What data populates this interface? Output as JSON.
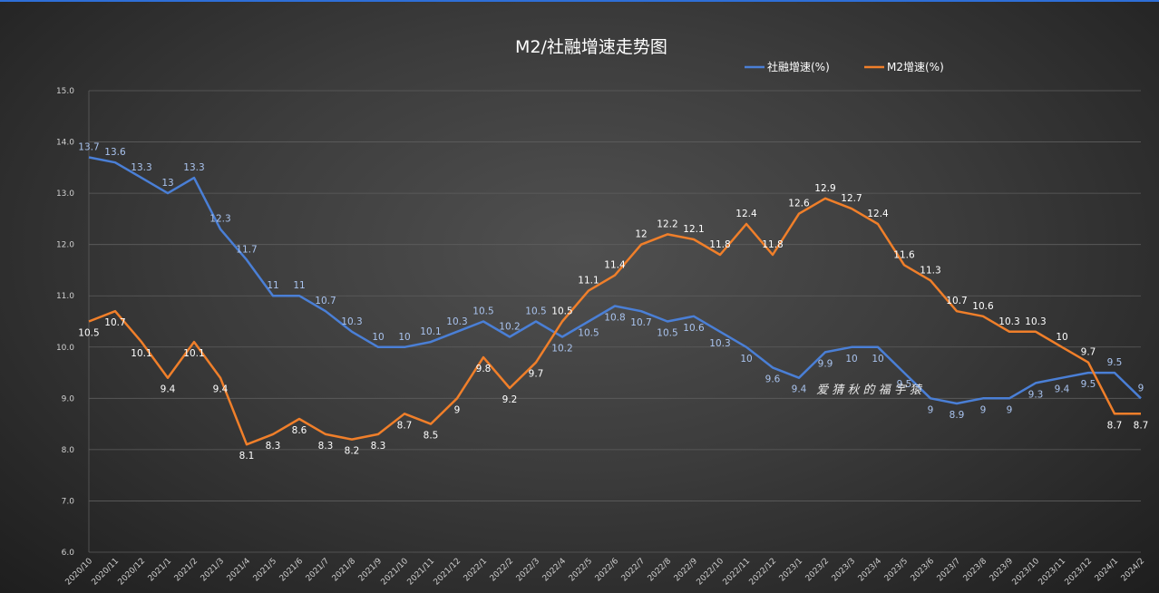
{
  "chart_data": {
    "type": "line",
    "title": "M2/社融增速走势图",
    "legend_position": "top-right",
    "grid": true,
    "ylim": [
      6.0,
      15.0
    ],
    "y_ticks": [
      "15.0",
      "14.0",
      "13.0",
      "12.0",
      "11.0",
      "10.0",
      "9.0",
      "8.0",
      "7.0",
      "6.0"
    ],
    "x": [
      "2020/10",
      "2020/11",
      "2020/12",
      "2021/1",
      "2021/2",
      "2021/3",
      "2021/4",
      "2021/5",
      "2021/6",
      "2021/7",
      "2021/8",
      "2021/9",
      "2021/10",
      "2021/11",
      "2021/12",
      "2022/1",
      "2022/2",
      "2022/3",
      "2022/4",
      "2022/5",
      "2022/6",
      "2022/7",
      "2022/8",
      "2022/9",
      "2022/10",
      "2022/11",
      "2022/12",
      "2023/1",
      "2023/2",
      "2023/3",
      "2023/4",
      "2023/5",
      "2023/6",
      "2023/7",
      "2023/8",
      "2023/9",
      "2023/10",
      "2023/11",
      "2023/12",
      "2024/1",
      "2024/2"
    ],
    "series": [
      {
        "name": "社融增速(%)",
        "color": "#4a7fd6",
        "values": [
          13.7,
          13.6,
          13.3,
          13,
          13.3,
          12.3,
          11.7,
          11,
          11,
          10.7,
          10.3,
          10,
          10,
          10.1,
          10.3,
          10.5,
          10.2,
          10.5,
          10.2,
          10.5,
          10.8,
          10.7,
          10.5,
          10.6,
          10.3,
          10,
          9.6,
          9.4,
          9.9,
          10,
          10,
          9.5,
          9,
          8.9,
          9,
          9,
          9.3,
          9.4,
          9.5,
          9.5,
          9
        ]
      },
      {
        "name": "M2增速(%)",
        "color": "#f07f2a",
        "values": [
          10.5,
          10.7,
          10.1,
          9.4,
          10.1,
          9.4,
          8.1,
          8.3,
          8.6,
          8.3,
          8.2,
          8.3,
          8.7,
          8.5,
          9,
          9.8,
          9.2,
          9.7,
          10.5,
          11.1,
          11.4,
          12,
          12.2,
          12.1,
          11.8,
          12.4,
          11.8,
          12.6,
          12.9,
          12.7,
          12.4,
          11.6,
          11.3,
          10.7,
          10.6,
          10.3,
          10.3,
          10,
          9.7,
          8.7,
          8.7
        ]
      }
    ]
  },
  "watermark": "爱 猜 秋 的 福 宇 猿"
}
